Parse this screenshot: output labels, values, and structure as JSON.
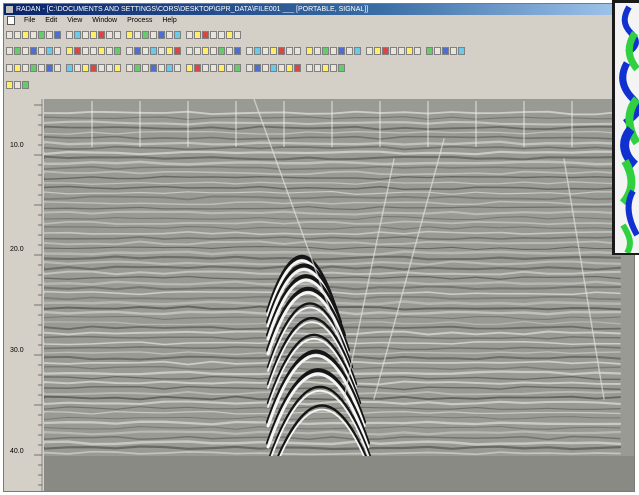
{
  "window": {
    "title": "RADAN - [C:\\DOCUMENTS AND SETTINGS\\CORS\\DESKTOP\\GPR_DATA\\FILE001 ___ [PORTABLE, SIGNAL]]"
  },
  "menu": [
    {
      "label": "File"
    },
    {
      "label": "Edit"
    },
    {
      "label": "View"
    },
    {
      "label": "Window"
    },
    {
      "label": "Process"
    },
    {
      "label": "Help"
    }
  ],
  "toolbars": {
    "row1_count": 28,
    "row2_count": 54,
    "row3_count": 40,
    "row4_count": 3
  },
  "depth_axis": {
    "labels": [
      "10.0",
      "20.0",
      "30.0",
      "40.0"
    ]
  },
  "colors": {
    "title_bar": "#0a246a",
    "window_bg": "#d4d0c8",
    "radargram_gray": "#9a9a95",
    "inset_blue": "#1030d0",
    "inset_green": "#30d040"
  },
  "icons": {
    "app": "app-icon",
    "document": "doc-icon"
  }
}
